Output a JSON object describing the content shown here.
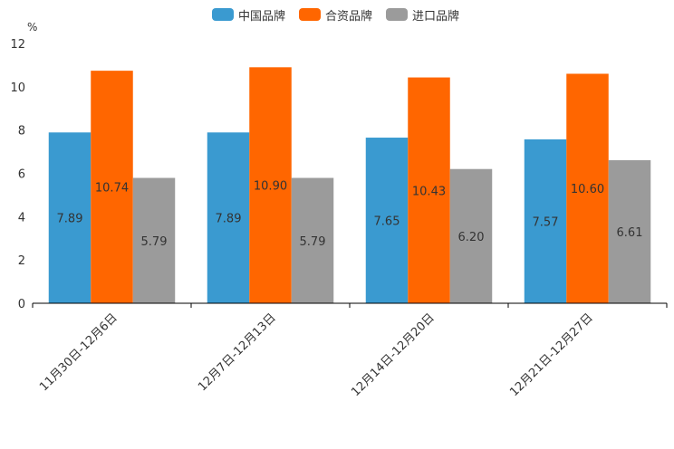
{
  "chart_data": {
    "type": "bar",
    "title": "",
    "ylabel": "%",
    "xlabel": "",
    "ylim": [
      0,
      12
    ],
    "yticks": [
      0,
      2,
      4,
      6,
      8,
      10,
      12
    ],
    "categories": [
      "11月30日-12月6日",
      "12月7日-12月13日",
      "12月14日-12月20日",
      "12月21日-12月27日"
    ],
    "series": [
      {
        "name": "中国品牌",
        "color": "#3a9ad0",
        "values": [
          7.89,
          7.89,
          7.65,
          7.57
        ],
        "labels": [
          "7.89",
          "7.89",
          "7.65",
          "7.57"
        ]
      },
      {
        "name": "合资品牌",
        "color": "#ff6600",
        "values": [
          10.74,
          10.9,
          10.43,
          10.6
        ],
        "labels": [
          "10.74",
          "10.90",
          "10.43",
          "10.60"
        ]
      },
      {
        "name": "进口品牌",
        "color": "#9b9b9b",
        "values": [
          5.79,
          5.79,
          6.2,
          6.61
        ],
        "labels": [
          "5.79",
          "5.79",
          "6.20",
          "6.61"
        ]
      }
    ],
    "legend_position": "top-center"
  }
}
